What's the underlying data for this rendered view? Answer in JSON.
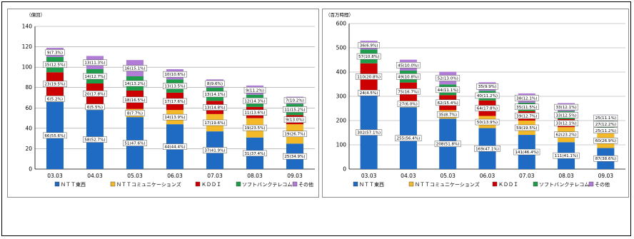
{
  "colors": {
    "ntt_east": "#1f6bc4",
    "ntt_com": "#f3b928",
    "kddi": "#cc0000",
    "softbank": "#1e9e4a",
    "other": "#b07cd6"
  },
  "chart_data": [
    {
      "type": "bar",
      "stacked": true,
      "unit": "（億回）",
      "ylim": [
        0,
        140
      ],
      "yticks": [
        0,
        20,
        40,
        60,
        80,
        100,
        120,
        140
      ],
      "grid": true,
      "legend_position": "bottom",
      "categories": [
        "03.03",
        "04.03",
        "05.03",
        "06.03",
        "07.03",
        "08.03",
        "09.03"
      ],
      "series": [
        {
          "name": "ＮＴＴ東西",
          "values": [
            66,
            58,
            51,
            44,
            37,
            31,
            25
          ],
          "labels": [
            "66(55.6%)",
            "58(52.7%)",
            "51(47.6%)",
            "44(44.4%)",
            "37(41.9%)",
            "31(37.4%)",
            "25(34.9%)"
          ]
        },
        {
          "name": "ＮＴＴコミュニケーションズ",
          "values": [
            6,
            6,
            8,
            14,
            17,
            19,
            19
          ],
          "labels": [
            "6(5.2%)",
            "6(5.5%)",
            "8(7.7%)",
            "14(13.9%)",
            "17(19.6%)",
            "19(23.5%)",
            "19(26.7%)"
          ]
        },
        {
          "name": "ＫＤＤＩ",
          "values": [
            23,
            20,
            18,
            17,
            13,
            11,
            9
          ],
          "labels": [
            "23(19.5%)",
            "20(17.8%)",
            "18(16.5%)",
            "17(17.6%)",
            "13(14.8%)",
            "11(13.6%)",
            "9(13.0%)"
          ]
        },
        {
          "name": "ソフトバンクテレコム",
          "values": [
            15,
            14,
            14,
            13,
            13,
            12,
            11
          ],
          "labels": [
            "15(12.5%)",
            "14(12.7%)",
            "14(13.2%)",
            "13(13.5%)",
            "13(14.1%)",
            "12(14.3%)",
            "11(15.2%)"
          ]
        },
        {
          "name": "その他",
          "values": [
            9,
            13,
            16,
            10,
            8,
            9,
            7
          ],
          "labels": [
            "9(7.3%)",
            "13(11.3%)",
            "16(15.1%)",
            "10(10.6%)",
            "8(9.6%)",
            "9(11.2%)",
            "7(10.2%)"
          ]
        }
      ]
    },
    {
      "type": "bar",
      "stacked": true,
      "unit": "（百万時間）",
      "ylim": [
        0,
        600
      ],
      "yticks": [
        0,
        100,
        200,
        300,
        400,
        500,
        600
      ],
      "grid": true,
      "legend_position": "bottom",
      "categories": [
        "03.03",
        "04.03",
        "05.03",
        "06.03",
        "07.03",
        "08.03",
        "09.03"
      ],
      "series": [
        {
          "name": "ＮＴＴ東西",
          "values": [
            302,
            255,
            208,
            169,
            141,
            111,
            87
          ],
          "labels": [
            "302(57.1%)",
            "255(56.4%)",
            "208(51.8%)",
            "169(47.1%)",
            "141(46.4%)",
            "111(41.1%)",
            "87(38.6%)"
          ]
        },
        {
          "name": "ＮＴＴコミュニケーションズ",
          "values": [
            24,
            27,
            35,
            50,
            59,
            62,
            60
          ],
          "labels": [
            "24(4.5%)",
            "27(6.0%)",
            "35(8.7%)",
            "50(13.9%)",
            "59(19.5%)",
            "62(23.2%)",
            "60(26.9%)"
          ]
        },
        {
          "name": "ＫＤＤＩ",
          "values": [
            110,
            75,
            62,
            64,
            39,
            33,
            25
          ],
          "labels": [
            "110(20.8%)",
            "75(16.7%)",
            "62(15.4%)",
            "64(17.8%)",
            "39(12.7%)",
            "33(12.1%)",
            "25(11.2%)"
          ]
        },
        {
          "name": "ソフトバンクテレコム",
          "values": [
            57,
            49,
            44,
            40,
            35,
            33,
            27
          ],
          "labels": [
            "57(10.8%)",
            "49(10.8%)",
            "44(11.1%)",
            "40(11.2%)",
            "35(11.5%)",
            "33(12.5%)",
            "27(12.2%)"
          ]
        },
        {
          "name": "その他",
          "values": [
            36,
            45,
            52,
            35,
            38,
            33,
            25
          ],
          "labels": [
            "36(6.9%)",
            "45(10.0%)",
            "52(13.0%)",
            "35(9.9%)",
            "38(12.1%)",
            "33(12.1%)",
            "25(11.1%)"
          ]
        }
      ]
    }
  ]
}
